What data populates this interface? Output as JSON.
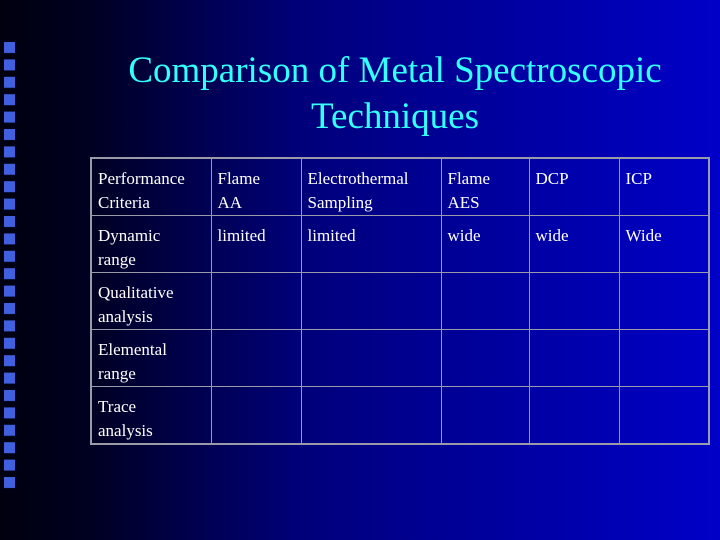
{
  "slide": {
    "title": "Comparison of Metal Spectroscopic\nTechniques",
    "table": {
      "header": [
        "Performance\nCriteria",
        "Flame\nAA",
        "Electrothermal\nSampling",
        "Flame\nAES",
        "DCP",
        "ICP"
      ],
      "rows": [
        [
          "Dynamic\nrange",
          "limited",
          "limited",
          "wide",
          "wide",
          "Wide"
        ],
        [
          "Qualitative\nanalysis"
        ],
        [
          "Elemental\nrange"
        ],
        [
          "Trace\nanalysis"
        ]
      ]
    }
  }
}
